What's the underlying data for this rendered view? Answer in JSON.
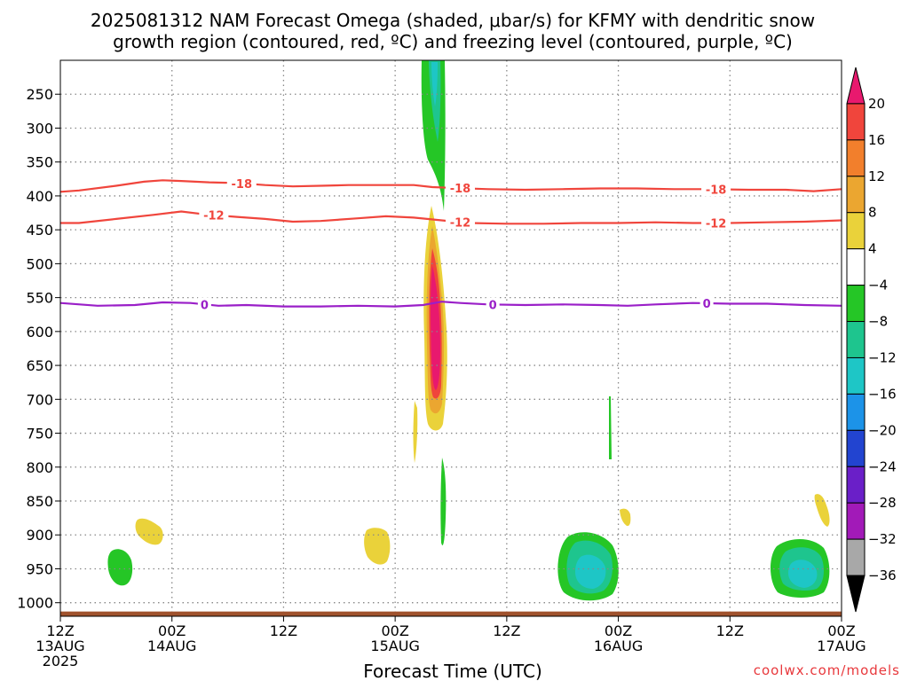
{
  "title_line1": "2025081312 NAM Forecast Omega (shaded, μbar/s) for KFMY with dendritic snow",
  "title_line2": "growth region (contoured, red, ºC) and freezing level (contoured, purple, ºC)",
  "credit": "coolwx.com/models",
  "chart_data": {
    "type": "contour",
    "title": "2025081312 NAM Forecast Omega (shaded, μbar/s) for KFMY with dendritic snow growth region (contoured, red, ºC) and freezing level (contoured, purple, ºC)",
    "xlabel": "Forecast Time (UTC)",
    "ylabel": "",
    "xlim": [
      0,
      84
    ],
    "ylim": [
      1020,
      200
    ],
    "grid": true,
    "x_ticks": [
      {
        "x": 0,
        "label": "12Z",
        "sub": "13AUG",
        "sub2": "2025"
      },
      {
        "x": 12,
        "label": "00Z",
        "sub": "14AUG",
        "sub2": ""
      },
      {
        "x": 24,
        "label": "12Z",
        "sub": "",
        "sub2": ""
      },
      {
        "x": 36,
        "label": "00Z",
        "sub": "15AUG",
        "sub2": ""
      },
      {
        "x": 48,
        "label": "12Z",
        "sub": "",
        "sub2": ""
      },
      {
        "x": 60,
        "label": "00Z",
        "sub": "16AUG",
        "sub2": ""
      },
      {
        "x": 72,
        "label": "12Z",
        "sub": "",
        "sub2": ""
      },
      {
        "x": 84,
        "label": "00Z",
        "sub": "17AUG",
        "sub2": ""
      }
    ],
    "y_ticks": [
      250,
      300,
      350,
      400,
      450,
      500,
      550,
      600,
      650,
      700,
      750,
      800,
      850,
      900,
      950,
      1000
    ],
    "colorbar": {
      "labels": [
        "20",
        "16",
        "12",
        "8",
        "4",
        "−4",
        "−8",
        "−12",
        "−16",
        "−20",
        "−24",
        "−28",
        "−32",
        "−36"
      ],
      "colors": [
        "#e8196e",
        "#f0453c",
        "#f27f2c",
        "#eba630",
        "#ead23a",
        "#ffffff",
        "#25c626",
        "#1ec58e",
        "#1ec6c6",
        "#1c93e8",
        "#2244d0",
        "#6a1fc8",
        "#a21ab8",
        "#a8a8a8",
        "#000000"
      ]
    },
    "series": [
      {
        "name": "-18",
        "color": "#f0453c",
        "points": [
          [
            0,
            394
          ],
          [
            2,
            392
          ],
          [
            6,
            385
          ],
          [
            9,
            379
          ],
          [
            11,
            377
          ],
          [
            13,
            378
          ],
          [
            16,
            380
          ],
          [
            19,
            381
          ],
          [
            22,
            384
          ],
          [
            25,
            386
          ],
          [
            28,
            385
          ],
          [
            31,
            384
          ],
          [
            35,
            384
          ],
          [
            38,
            384
          ],
          [
            40,
            387
          ],
          [
            42,
            388
          ],
          [
            46,
            390
          ],
          [
            50,
            391
          ],
          [
            54,
            390
          ],
          [
            58,
            389
          ],
          [
            62,
            389
          ],
          [
            66,
            390
          ],
          [
            70,
            390
          ],
          [
            74,
            391
          ],
          [
            78,
            391
          ],
          [
            81,
            393
          ],
          [
            84,
            390
          ]
        ],
        "labels": [
          {
            "x": 19.5,
            "text": "-18"
          },
          {
            "x": 43,
            "text": "-18"
          },
          {
            "x": 70.5,
            "text": "-18"
          }
        ]
      },
      {
        "name": "-12",
        "color": "#f0453c",
        "points": [
          [
            0,
            440
          ],
          [
            2,
            440
          ],
          [
            6,
            434
          ],
          [
            10,
            428
          ],
          [
            13,
            423
          ],
          [
            16,
            428
          ],
          [
            19,
            431
          ],
          [
            22,
            434
          ],
          [
            25,
            438
          ],
          [
            28,
            437
          ],
          [
            32,
            433
          ],
          [
            35,
            430
          ],
          [
            38,
            432
          ],
          [
            41,
            436
          ],
          [
            44,
            440
          ],
          [
            48,
            441
          ],
          [
            52,
            441
          ],
          [
            56,
            440
          ],
          [
            60,
            440
          ],
          [
            64,
            439
          ],
          [
            68,
            440
          ],
          [
            72,
            440
          ],
          [
            76,
            439
          ],
          [
            80,
            438
          ],
          [
            84,
            436
          ]
        ],
        "labels": [
          {
            "x": 16.5,
            "text": "-12"
          },
          {
            "x": 43,
            "text": "-12"
          },
          {
            "x": 70.5,
            "text": "-12"
          }
        ]
      },
      {
        "name": "0",
        "color": "#9a1fc8",
        "points": [
          [
            0,
            558
          ],
          [
            4,
            562
          ],
          [
            8,
            561
          ],
          [
            11,
            557
          ],
          [
            14,
            558
          ],
          [
            17,
            562
          ],
          [
            20,
            561
          ],
          [
            24,
            563
          ],
          [
            28,
            563
          ],
          [
            32,
            562
          ],
          [
            36,
            563
          ],
          [
            39,
            561
          ],
          [
            41,
            556
          ],
          [
            43,
            558
          ],
          [
            46,
            560
          ],
          [
            50,
            561
          ],
          [
            54,
            560
          ],
          [
            58,
            561
          ],
          [
            61,
            562
          ],
          [
            64,
            560
          ],
          [
            68,
            558
          ],
          [
            72,
            559
          ],
          [
            76,
            559
          ],
          [
            80,
            561
          ],
          [
            84,
            562
          ]
        ],
        "labels": [
          {
            "x": 15.5,
            "text": "0"
          },
          {
            "x": 46.5,
            "text": "0"
          },
          {
            "x": 69.5,
            "text": "0"
          }
        ]
      }
    ],
    "surface": {
      "below_pressure": 1013,
      "color": "#a0522d"
    }
  }
}
